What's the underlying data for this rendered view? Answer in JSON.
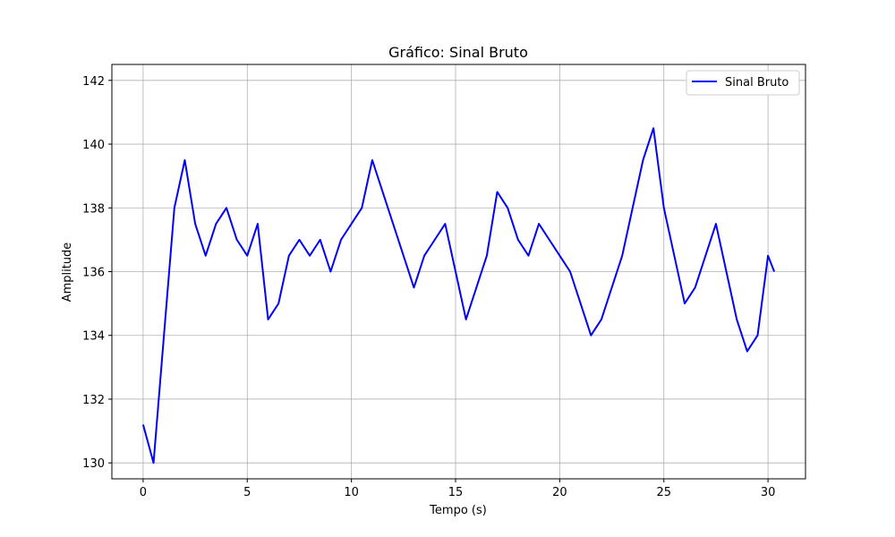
{
  "chart_data": {
    "type": "line",
    "title": "Gráfico: Sinal Bruto",
    "xlabel": "Tempo (s)",
    "ylabel": "Amplitude",
    "xlim": [
      -1.5,
      31.8
    ],
    "ylim": [
      129.5,
      142.5
    ],
    "xticks": [
      0,
      5,
      10,
      15,
      20,
      25,
      30
    ],
    "xtick_labels": [
      "0",
      "5",
      "10",
      "15",
      "20",
      "25",
      "30"
    ],
    "yticks": [
      130,
      132,
      134,
      136,
      138,
      140,
      142
    ],
    "ytick_labels": [
      "130",
      "132",
      "134",
      "136",
      "138",
      "140",
      "142"
    ],
    "grid": true,
    "legend_position": "top-right",
    "series": [
      {
        "name": "Sinal Bruto",
        "color": "#0000ff",
        "x": [
          0,
          0.5,
          1,
          1.5,
          2,
          2.5,
          3,
          3.5,
          4,
          4.5,
          5,
          5.5,
          6,
          6.5,
          7,
          7.5,
          8,
          8.5,
          9,
          9.5,
          10,
          10.5,
          11,
          11.5,
          12,
          12.5,
          13,
          13.5,
          14,
          14.5,
          15,
          15.5,
          16,
          16.5,
          17,
          17.5,
          18,
          18.5,
          19,
          19.5,
          20,
          20.5,
          21,
          21.5,
          22,
          22.5,
          23,
          23.5,
          24,
          24.5,
          25,
          25.5,
          26,
          26.5,
          27,
          27.5,
          28,
          28.5,
          29,
          29.5,
          30,
          30.3
        ],
        "y": [
          131.2,
          130.0,
          134.0,
          138.0,
          139.5,
          137.5,
          136.5,
          137.5,
          138.0,
          137.0,
          136.5,
          137.5,
          134.5,
          135.0,
          136.5,
          137.0,
          136.5,
          137.0,
          136.0,
          137.0,
          137.5,
          138.0,
          139.5,
          138.5,
          137.5,
          136.5,
          135.5,
          136.5,
          137.0,
          137.5,
          136.0,
          134.5,
          135.5,
          136.5,
          138.5,
          138.0,
          137.0,
          136.5,
          137.5,
          137.0,
          136.5,
          136.0,
          135.0,
          134.0,
          134.5,
          135.5,
          136.5,
          138.0,
          139.5,
          140.5,
          138.0,
          136.5,
          135.0,
          135.5,
          136.5,
          137.5,
          136.0,
          134.5,
          133.5,
          134.0,
          136.5,
          136.0
        ]
      }
    ]
  }
}
